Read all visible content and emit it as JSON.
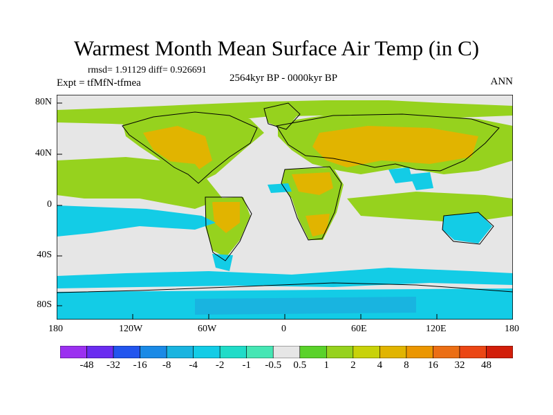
{
  "title": "Warmest Month Mean Surface Air Temp (in C)",
  "stats": "rmsd= 1.91129 diff= 0.926691",
  "experiment": "Expt = tfMfN-tfmea",
  "period": "2564kyr BP - 0000kyr BP",
  "season": "ANN",
  "x_ticks": [
    "180",
    "120W",
    "60W",
    "0",
    "60E",
    "120E",
    "180"
  ],
  "y_ticks": [
    "80N",
    "40N",
    "0",
    "40S",
    "80S"
  ],
  "colorbar": {
    "labels": [
      "-48",
      "-32",
      "-16",
      "-8",
      "-4",
      "-2",
      "-1",
      "-0.5",
      "0.5",
      "1",
      "2",
      "4",
      "8",
      "16",
      "32",
      "48"
    ],
    "colors": [
      "#9b30f0",
      "#6a2cf0",
      "#2255ee",
      "#1a8ae6",
      "#19b4e0",
      "#13cce6",
      "#20dcc8",
      "#46e6b4",
      "#e6e6e6",
      "#5ad22a",
      "#96d21e",
      "#c8d20a",
      "#e1b400",
      "#eb9600",
      "#eb6e14",
      "#eb4614",
      "#d21e0a"
    ]
  },
  "map_colors": {
    "neutral": "#e6e6e6",
    "cool": "#13cce6",
    "cooler": "#19b4e0",
    "warm": "#96d21e",
    "warmer": "#c8d20a",
    "hot": "#e1b400",
    "coast": "#000000"
  }
}
